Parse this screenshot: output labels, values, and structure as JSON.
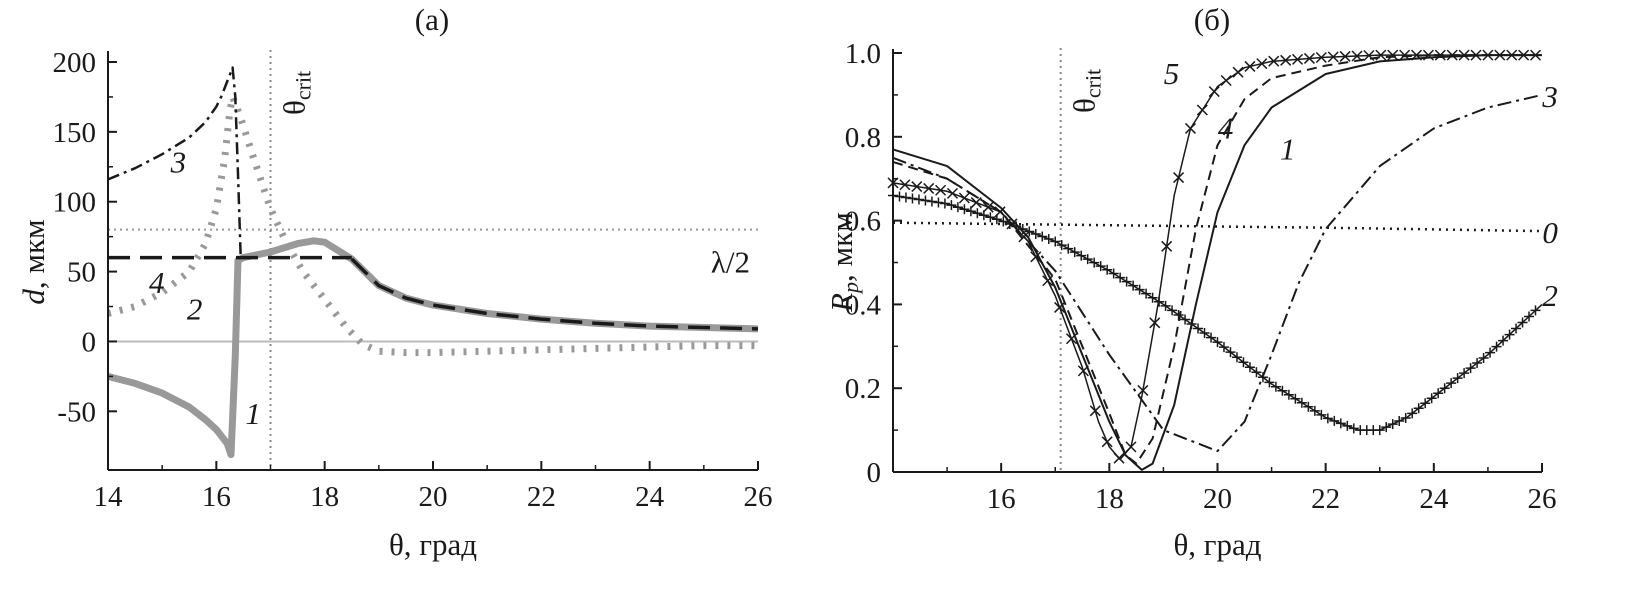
{
  "figure": {
    "panels": [
      "(a)",
      "(б)"
    ]
  },
  "chart_data": [
    {
      "type": "line",
      "title": "(a)",
      "xlabel": "θ, град",
      "ylabel_italic": "d",
      "ylabel_rest": ", мкм",
      "xlim": [
        14,
        26
      ],
      "ylim": [
        -92,
        205
      ],
      "xticks": [
        14,
        16,
        18,
        20,
        22,
        24,
        26
      ],
      "yticks": [
        -50,
        0,
        50,
        100,
        150,
        200
      ],
      "grid": false,
      "reference_lines": {
        "vertical": {
          "x": 17.0,
          "label_main": "θ",
          "label_sub": "crit",
          "style": "dotted",
          "color": "#888888"
        },
        "horizontal": {
          "y": 80,
          "label": "λ/2",
          "style": "dotted",
          "color": "#999999"
        },
        "zero": {
          "y": 0,
          "color": "#bbbbbb"
        }
      },
      "series": [
        {
          "name": "1",
          "label_at": [
            16.68,
            -52
          ],
          "color": "#999999",
          "width": 7,
          "dash": "",
          "segments": [
            [
              [
                14,
                -25
              ],
              [
                14.5,
                -30
              ],
              [
                15,
                -37
              ],
              [
                15.5,
                -47
              ],
              [
                15.8,
                -56
              ],
              [
                16.0,
                -63
              ],
              [
                16.2,
                -73
              ],
              [
                16.27,
                -81
              ],
              [
                16.3,
                -55
              ],
              [
                16.35,
                -10
              ],
              [
                16.38,
                30
              ],
              [
                16.4,
                58
              ],
              [
                16.5,
                60
              ],
              [
                17.0,
                64
              ],
              [
                17.5,
                70
              ],
              [
                17.8,
                72
              ],
              [
                18.0,
                71
              ],
              [
                18.5,
                59
              ],
              [
                19.0,
                40
              ],
              [
                19.5,
                31
              ],
              [
                20,
                26
              ],
              [
                21,
                20
              ],
              [
                22,
                16
              ],
              [
                23,
                13
              ],
              [
                24,
                11
              ],
              [
                25,
                10
              ],
              [
                26,
                9
              ]
            ]
          ]
        },
        {
          "name": "2",
          "label_at": [
            15.6,
            23
          ],
          "color": "#999999",
          "width": 7,
          "dash": "3 9",
          "segments": [
            [
              [
                14,
                20
              ],
              [
                14.5,
                25
              ],
              [
                15,
                35
              ],
              [
                15.5,
                50
              ],
              [
                15.8,
                70
              ],
              [
                16,
                95
              ],
              [
                16.15,
                130
              ],
              [
                16.25,
                165
              ],
              [
                16.3,
                175
              ],
              [
                16.45,
                160
              ],
              [
                16.7,
                130
              ],
              [
                17,
                95
              ],
              [
                17.3,
                70
              ],
              [
                17.6,
                50
              ],
              [
                18,
                30
              ],
              [
                18.4,
                10
              ],
              [
                18.7,
                -2
              ],
              [
                19,
                -7
              ],
              [
                19.5,
                -8
              ],
              [
                20,
                -8
              ],
              [
                21,
                -7
              ],
              [
                22,
                -6
              ],
              [
                23,
                -5
              ],
              [
                24,
                -4
              ],
              [
                25,
                -3
              ],
              [
                26,
                -3
              ]
            ]
          ]
        },
        {
          "name": "3",
          "label_at": [
            15.3,
            128
          ],
          "color": "#1a1a1a",
          "width": 2.5,
          "dash": "12 5 3 5",
          "segments": [
            [
              [
                14,
                116
              ],
              [
                14.5,
                124
              ],
              [
                15,
                134
              ],
              [
                15.5,
                146
              ],
              [
                15.8,
                157
              ],
              [
                16.0,
                168
              ],
              [
                16.1,
                176
              ],
              [
                16.2,
                186
              ],
              [
                16.3,
                196
              ],
              [
                16.35,
                175
              ],
              [
                16.4,
                120
              ],
              [
                16.45,
                60
              ]
            ]
          ]
        },
        {
          "name": "4",
          "label_at": [
            14.9,
            42
          ],
          "color": "#1a1a1a",
          "width": 3.5,
          "dash": "22 10",
          "segments": [
            [
              [
                14,
                60
              ],
              [
                15,
                60
              ],
              [
                16,
                60
              ],
              [
                16.4,
                60
              ],
              [
                17,
                60
              ],
              [
                17.5,
                60
              ],
              [
                18,
                60
              ],
              [
                18.5,
                60
              ]
            ],
            [
              [
                18.5,
                59
              ],
              [
                19,
                40
              ],
              [
                19.5,
                31
              ],
              [
                20,
                26
              ],
              [
                21,
                20
              ],
              [
                22,
                16
              ],
              [
                23,
                13
              ],
              [
                24,
                11
              ],
              [
                25,
                10
              ],
              [
                26,
                9
              ]
            ]
          ]
        }
      ]
    },
    {
      "type": "line",
      "title": "(б)",
      "xlabel": "θ, град",
      "ylabel_italic": "R",
      "ylabel_sub": "p",
      "ylabel_rest": ", мкм",
      "xlim": [
        14,
        26
      ],
      "ylim": [
        0,
        1.0
      ],
      "xticks": [
        16,
        18,
        20,
        22,
        24,
        26
      ],
      "yticks": [
        0,
        0.2,
        0.4,
        0.6,
        0.8,
        1.0
      ],
      "ytick_labels": [
        "0",
        "0.2",
        "0.4",
        "0.6",
        "0.8",
        "1.0"
      ],
      "grid": false,
      "reference_lines": {
        "vertical": {
          "x": 17.1,
          "label_main": "θ",
          "label_sub": "crit",
          "style": "dotted",
          "color": "#888888"
        }
      },
      "series": [
        {
          "name": "0",
          "label_at": [
            26.15,
            0.57
          ],
          "color": "#1a1a1a",
          "width": 2.5,
          "dash": "2 5",
          "segments": [
            [
              [
                14,
                0.595
              ],
              [
                16,
                0.592
              ],
              [
                18,
                0.589
              ],
              [
                20,
                0.586
              ],
              [
                22,
                0.583
              ],
              [
                24,
                0.579
              ],
              [
                26,
                0.575
              ]
            ]
          ]
        },
        {
          "name": "1",
          "label_at": [
            21.3,
            0.77
          ],
          "color": "#1a1a1a",
          "width": 2,
          "dash": "",
          "segments": [
            [
              [
                14,
                0.77
              ],
              [
                15,
                0.73
              ],
              [
                16,
                0.63
              ],
              [
                16.5,
                0.56
              ],
              [
                17,
                0.44
              ],
              [
                17.5,
                0.28
              ],
              [
                18,
                0.12
              ],
              [
                18.3,
                0.04
              ],
              [
                18.6,
                0.005
              ],
              [
                18.8,
                0.02
              ],
              [
                19.2,
                0.16
              ],
              [
                19.6,
                0.4
              ],
              [
                20,
                0.62
              ],
              [
                20.5,
                0.78
              ],
              [
                21,
                0.87
              ],
              [
                22,
                0.95
              ],
              [
                23,
                0.98
              ],
              [
                24,
                0.99
              ],
              [
                25,
                0.995
              ],
              [
                26,
                0.995
              ]
            ]
          ]
        },
        {
          "name": "2",
          "label_at": [
            26.15,
            0.42
          ],
          "color": "#1a1a1a",
          "width": 1.5,
          "dash": "",
          "marker": "plus",
          "marker_step": 0.12,
          "segments": [
            [
              [
                14,
                0.66
              ],
              [
                15,
                0.64
              ],
              [
                16,
                0.6
              ],
              [
                17,
                0.55
              ],
              [
                18,
                0.48
              ],
              [
                19,
                0.4
              ],
              [
                20,
                0.31
              ],
              [
                21,
                0.21
              ],
              [
                22,
                0.13
              ],
              [
                22.6,
                0.1
              ],
              [
                23,
                0.1
              ],
              [
                23.5,
                0.13
              ],
              [
                24,
                0.18
              ],
              [
                25,
                0.28
              ],
              [
                26,
                0.4
              ]
            ]
          ]
        },
        {
          "name": "3",
          "label_at": [
            26.15,
            0.895
          ],
          "color": "#1a1a1a",
          "width": 2,
          "dash": "14 5 3 5",
          "segments": [
            [
              [
                14,
                0.75
              ],
              [
                15,
                0.7
              ],
              [
                16,
                0.62
              ],
              [
                17,
                0.48
              ],
              [
                18,
                0.28
              ],
              [
                19,
                0.1
              ],
              [
                20,
                0.05
              ],
              [
                20.5,
                0.12
              ],
              [
                21,
                0.28
              ],
              [
                21.5,
                0.45
              ],
              [
                22,
                0.58
              ],
              [
                23,
                0.73
              ],
              [
                24,
                0.82
              ],
              [
                25,
                0.87
              ],
              [
                26,
                0.9
              ]
            ]
          ]
        },
        {
          "name": "4",
          "label_at": [
            20.15,
            0.82
          ],
          "color": "#1a1a1a",
          "width": 2,
          "dash": "10 6",
          "segments": [
            [
              [
                14,
                0.74
              ],
              [
                15,
                0.7
              ],
              [
                16,
                0.62
              ],
              [
                17,
                0.46
              ],
              [
                17.5,
                0.3
              ],
              [
                18,
                0.14
              ],
              [
                18.3,
                0.04
              ],
              [
                18.5,
                0.02
              ],
              [
                18.8,
                0.08
              ],
              [
                19.2,
                0.3
              ],
              [
                19.6,
                0.58
              ],
              [
                20,
                0.78
              ],
              [
                20.5,
                0.89
              ],
              [
                21,
                0.94
              ],
              [
                22,
                0.97
              ],
              [
                23,
                0.99
              ],
              [
                24,
                0.995
              ],
              [
                26,
                0.995
              ]
            ]
          ]
        },
        {
          "name": "5",
          "label_at": [
            19.15,
            0.95
          ],
          "color": "#1a1a1a",
          "width": 1.5,
          "dash": "",
          "marker": "x",
          "marker_step": 0.22,
          "segments": [
            [
              [
                14,
                0.69
              ],
              [
                15,
                0.67
              ],
              [
                16,
                0.62
              ],
              [
                16.5,
                0.55
              ],
              [
                17,
                0.42
              ],
              [
                17.5,
                0.25
              ],
              [
                17.8,
                0.12
              ],
              [
                18.0,
                0.06
              ],
              [
                18.2,
                0.03
              ],
              [
                18.4,
                0.06
              ],
              [
                18.6,
                0.18
              ],
              [
                18.9,
                0.4
              ],
              [
                19.2,
                0.66
              ],
              [
                19.5,
                0.82
              ],
              [
                20,
                0.92
              ],
              [
                20.5,
                0.965
              ],
              [
                21,
                0.98
              ],
              [
                22,
                0.99
              ],
              [
                23,
                0.995
              ],
              [
                26,
                0.995
              ]
            ]
          ]
        }
      ]
    }
  ]
}
